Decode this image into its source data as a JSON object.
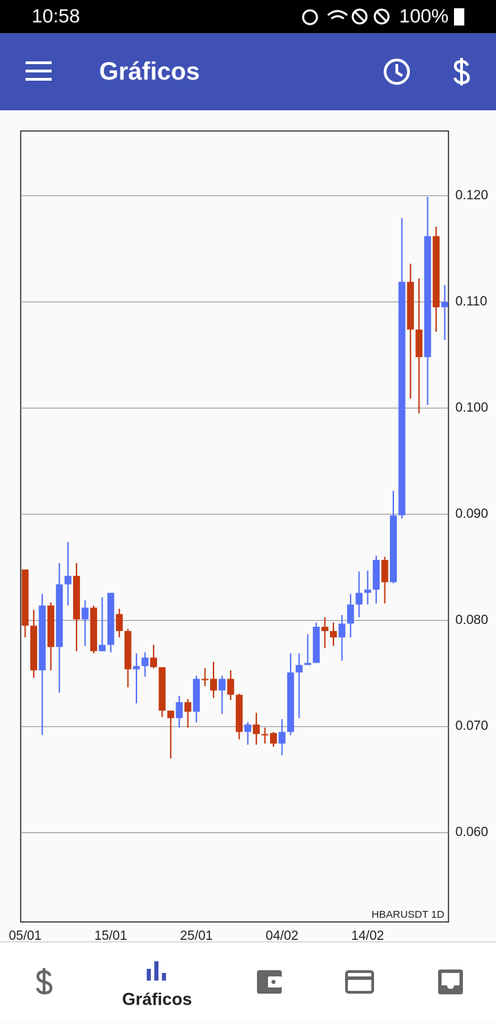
{
  "status_bar": {
    "time": "10:58",
    "battery": "100%"
  },
  "app_bar": {
    "title": "Gráficos"
  },
  "bottom_nav": {
    "active_label": "Gráficos"
  },
  "chart_data": {
    "type": "candlestick",
    "annotation": "HBARUSDT 1D",
    "categories": [
      "05/01",
      null,
      null,
      null,
      null,
      null,
      null,
      null,
      null,
      null,
      "15/01",
      null,
      null,
      null,
      null,
      null,
      null,
      null,
      null,
      null,
      "25/01",
      null,
      null,
      null,
      null,
      null,
      null,
      null,
      null,
      null,
      "04/02",
      null,
      null,
      null,
      null,
      null,
      null,
      null,
      null,
      null,
      "14/02",
      null,
      null,
      null,
      null,
      null,
      null,
      null,
      null,
      null
    ],
    "open": [
      0.0848,
      0.0795,
      0.0753,
      0.0814,
      0.0775,
      0.0834,
      0.0842,
      0.0801,
      0.0812,
      0.0771,
      0.0777,
      0.0806,
      0.079,
      0.0754,
      0.0757,
      0.0765,
      0.0756,
      0.0715,
      0.0708,
      0.0723,
      0.0714,
      0.0745,
      0.0745,
      0.0734,
      0.0745,
      0.073,
      0.0695,
      0.0702,
      0.0693,
      0.0694,
      0.0684,
      0.0695,
      0.0751,
      0.0758,
      0.076,
      0.0794,
      0.079,
      0.0784,
      0.0797,
      0.0815,
      0.0826,
      0.0829,
      0.0857,
      0.0836,
      0.0899,
      0.1119,
      0.1074,
      0.1048,
      0.1162,
      0.1095
    ],
    "high": [
      0.0848,
      0.081,
      0.0825,
      0.0817,
      0.0854,
      0.0874,
      0.0854,
      0.0819,
      0.0814,
      0.0822,
      0.0826,
      0.0811,
      0.0792,
      0.0769,
      0.077,
      0.0777,
      0.0756,
      0.0715,
      0.0729,
      0.0726,
      0.0748,
      0.0755,
      0.0761,
      0.0748,
      0.0753,
      0.0731,
      0.0704,
      0.0713,
      0.0699,
      0.0695,
      0.0707,
      0.0769,
      0.0769,
      0.0787,
      0.0798,
      0.0803,
      0.0798,
      0.0805,
      0.0825,
      0.0846,
      0.0847,
      0.0861,
      0.086,
      0.0922,
      0.1179,
      0.1136,
      0.1122,
      0.1199,
      0.1171,
      0.1116
    ],
    "low": [
      0.0784,
      0.0746,
      0.0692,
      0.0753,
      0.0732,
      0.0814,
      0.0771,
      0.0776,
      0.0769,
      0.0771,
      0.077,
      0.0784,
      0.0737,
      0.0722,
      0.0747,
      0.0755,
      0.0709,
      0.067,
      0.0699,
      0.0699,
      0.0704,
      0.0738,
      0.0727,
      0.0712,
      0.0725,
      0.0688,
      0.0683,
      0.0683,
      0.0684,
      0.0681,
      0.0673,
      0.0692,
      0.0708,
      0.0758,
      0.076,
      0.0774,
      0.0776,
      0.0762,
      0.0784,
      0.0803,
      0.0815,
      0.0816,
      0.0816,
      0.0835,
      0.0896,
      0.1009,
      0.0995,
      0.1003,
      0.1072,
      0.1064
    ],
    "close": [
      0.0795,
      0.0753,
      0.0814,
      0.0775,
      0.0834,
      0.0842,
      0.0801,
      0.0812,
      0.0771,
      0.0777,
      0.0826,
      0.079,
      0.0754,
      0.0757,
      0.0765,
      0.0756,
      0.0715,
      0.0708,
      0.0723,
      0.0714,
      0.0745,
      0.0744,
      0.0734,
      0.0745,
      0.073,
      0.0695,
      0.0702,
      0.0693,
      0.0692,
      0.0684,
      0.0695,
      0.0751,
      0.0758,
      0.076,
      0.0794,
      0.079,
      0.0784,
      0.0797,
      0.0815,
      0.0826,
      0.0829,
      0.0857,
      0.0836,
      0.0899,
      0.1119,
      0.1074,
      0.1048,
      0.1162,
      0.1095,
      0.11
    ],
    "up_color": "#5571f7",
    "down_color": "#c43a10",
    "ylim": [
      0.0516,
      0.1261
    ],
    "yticks": [
      {
        "value": 0.06,
        "label": "0.060"
      },
      {
        "value": 0.07,
        "label": "0.070"
      },
      {
        "value": 0.08,
        "label": "0.080"
      },
      {
        "value": 0.09,
        "label": "0.090"
      },
      {
        "value": 0.1,
        "label": "0.100"
      },
      {
        "value": 0.11,
        "label": "0.110"
      },
      {
        "value": 0.12,
        "label": "0.120"
      }
    ],
    "grid": true
  }
}
